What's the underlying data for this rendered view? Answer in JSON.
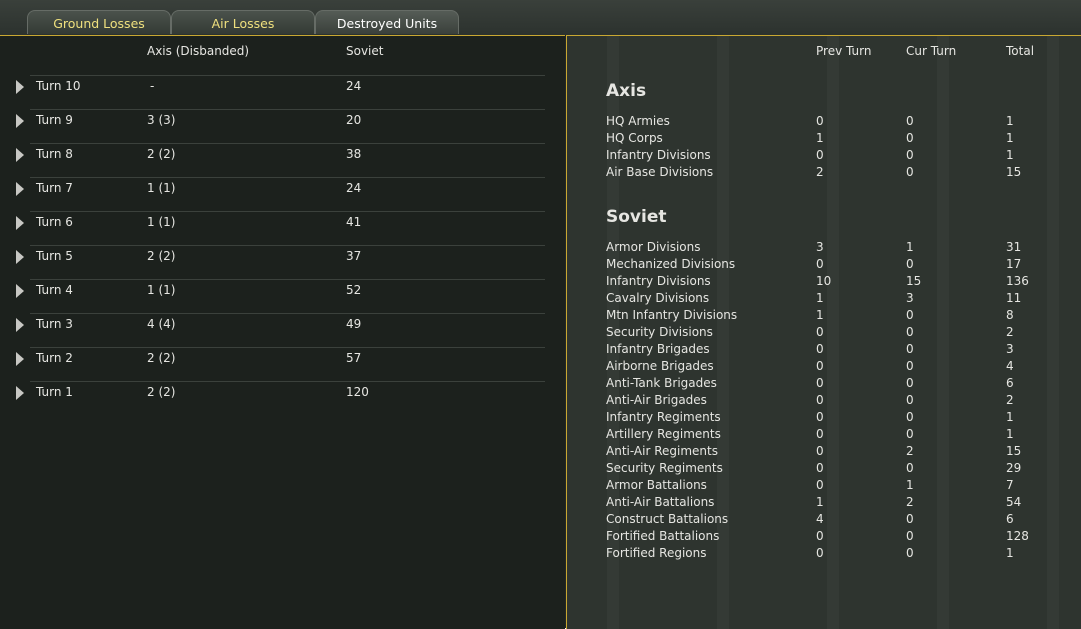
{
  "tabs": [
    "Ground Losses",
    "Air Losses",
    "Destroyed Units"
  ],
  "left": {
    "columns": [
      "Axis (Disbanded)",
      "Soviet"
    ],
    "rows": [
      [
        "Turn 10",
        "-",
        24
      ],
      [
        "Turn 9",
        "3 (3)",
        20
      ],
      [
        "Turn 8",
        "2 (2)",
        38
      ],
      [
        "Turn 7",
        "1 (1)",
        24
      ],
      [
        "Turn 6",
        "1 (1)",
        41
      ],
      [
        "Turn 5",
        "2 (2)",
        37
      ],
      [
        "Turn 4",
        "1 (1)",
        52
      ],
      [
        "Turn 3",
        "4 (4)",
        49
      ],
      [
        "Turn 2",
        "2 (2)",
        57
      ],
      [
        "Turn 1",
        "2 (2)",
        120
      ]
    ]
  },
  "right": {
    "columns": [
      "Prev Turn",
      "Cur Turn",
      "Total"
    ],
    "sections": [
      {
        "title": "Axis",
        "rows": [
          [
            "HQ Armies",
            0,
            0,
            1
          ],
          [
            "HQ Corps",
            1,
            0,
            1
          ],
          [
            "Infantry Divisions",
            0,
            0,
            1
          ],
          [
            "Air Base Divisions",
            2,
            0,
            15
          ]
        ]
      },
      {
        "title": "Soviet",
        "rows": [
          [
            "Armor Divisions",
            3,
            1,
            31
          ],
          [
            "Mechanized Divisions",
            0,
            0,
            17
          ],
          [
            "Infantry Divisions",
            10,
            15,
            136
          ],
          [
            "Cavalry Divisions",
            1,
            3,
            11
          ],
          [
            "Mtn Infantry Divisions",
            1,
            0,
            8
          ],
          [
            "Security Divisions",
            0,
            0,
            2
          ],
          [
            "Infantry Brigades",
            0,
            0,
            3
          ],
          [
            "Airborne Brigades",
            0,
            0,
            4
          ],
          [
            "Anti-Tank Brigades",
            0,
            0,
            6
          ],
          [
            "Anti-Air Brigades",
            0,
            0,
            2
          ],
          [
            "Infantry Regiments",
            0,
            0,
            1
          ],
          [
            "Artillery Regiments",
            0,
            0,
            1
          ],
          [
            "Anti-Air Regiments",
            0,
            2,
            15
          ],
          [
            "Security Regiments",
            0,
            0,
            29
          ],
          [
            "Armor Battalions",
            0,
            1,
            7
          ],
          [
            "Anti-Air Battalions",
            1,
            2,
            54
          ],
          [
            "Construct Battalions",
            4,
            0,
            6
          ],
          [
            "Fortified Battalions",
            0,
            0,
            128
          ],
          [
            "Fortified Regions",
            0,
            0,
            1
          ]
        ]
      }
    ]
  }
}
